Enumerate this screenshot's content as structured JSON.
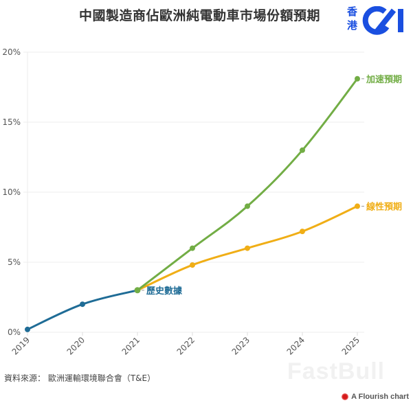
{
  "header": {
    "title": "中國製造商佔歐洲純電動車市場份額預期",
    "logo_text_line1": "香",
    "logo_text_line2": "港",
    "logo_color": "#1a4fe0"
  },
  "footer": {
    "source": "資料來源：  歐洲運輸環境聯合會（T&E）",
    "credit": "A Flourish chart",
    "watermark": "FastBull"
  },
  "chart_data": {
    "type": "line",
    "title": "中國製造商佔歐洲純電動車市場份額預期",
    "xlabel": "",
    "ylabel": "",
    "x": [
      "2019",
      "2020",
      "2021",
      "2022",
      "2023",
      "2024",
      "2025"
    ],
    "ylim": [
      0,
      20
    ],
    "yticks": [
      "0%",
      "5%",
      "10%",
      "15%",
      "20%"
    ],
    "grid": true,
    "legend_position": "inline-end-labels",
    "series": [
      {
        "name": "歷史數據",
        "color": "#1f6c96",
        "values": [
          0.2,
          2.0,
          3.0,
          null,
          null,
          null,
          null
        ]
      },
      {
        "name": "加速預期",
        "color": "#72ad45",
        "values": [
          null,
          null,
          3.0,
          6.0,
          9.0,
          13.0,
          18.1
        ]
      },
      {
        "name": "線性預期",
        "color": "#f0ae16",
        "values": [
          null,
          null,
          3.0,
          4.8,
          6.0,
          7.2,
          9.0
        ]
      }
    ]
  }
}
